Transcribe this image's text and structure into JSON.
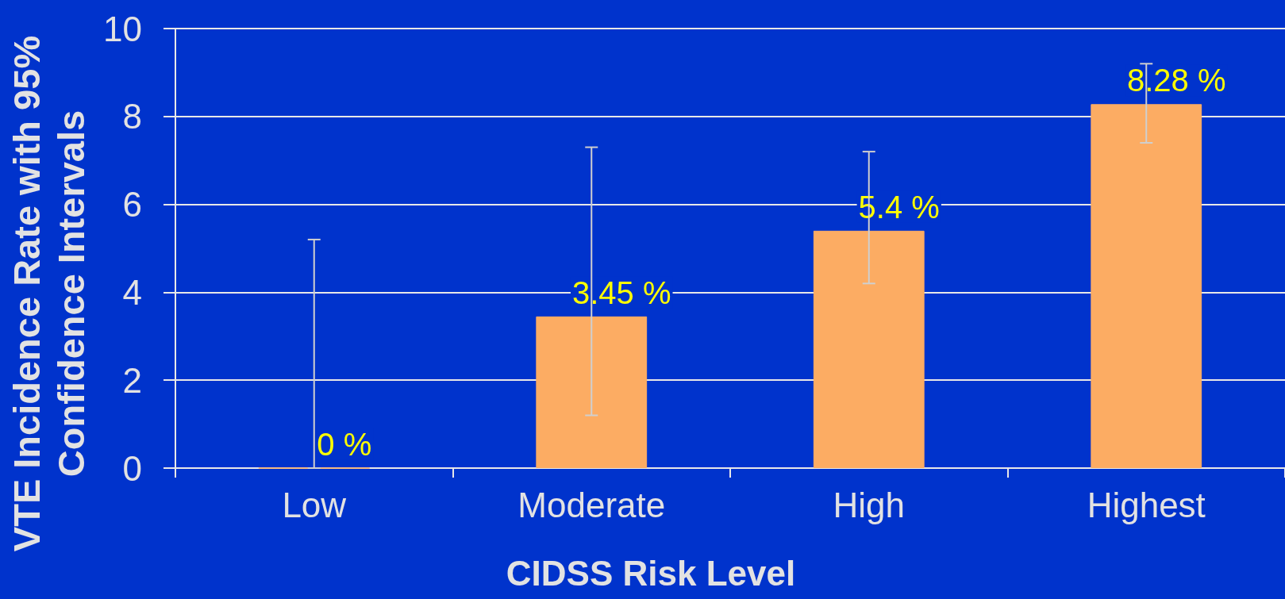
{
  "chart_data": {
    "type": "bar",
    "xlabel": "CIDSS Risk Level",
    "ylabel": "VTE Incidence Rate with 95% Confidence Intervals",
    "categories": [
      "Low",
      "Moderate",
      "High",
      "Highest"
    ],
    "values": [
      0,
      3.45,
      5.4,
      8.28
    ],
    "color": "#fcac63",
    "errors": [
      [
        0,
        5.2
      ],
      [
        1.2,
        7.3
      ],
      [
        4.2,
        7.2
      ],
      [
        7.4,
        9.2
      ]
    ],
    "value_labels": [
      "0 %",
      "3.45 %",
      "5.4 %",
      "8.28 %"
    ],
    "ylim": [
      0,
      10
    ],
    "yticks": [
      0,
      2,
      4,
      6,
      8,
      10
    ],
    "grid": "y"
  }
}
